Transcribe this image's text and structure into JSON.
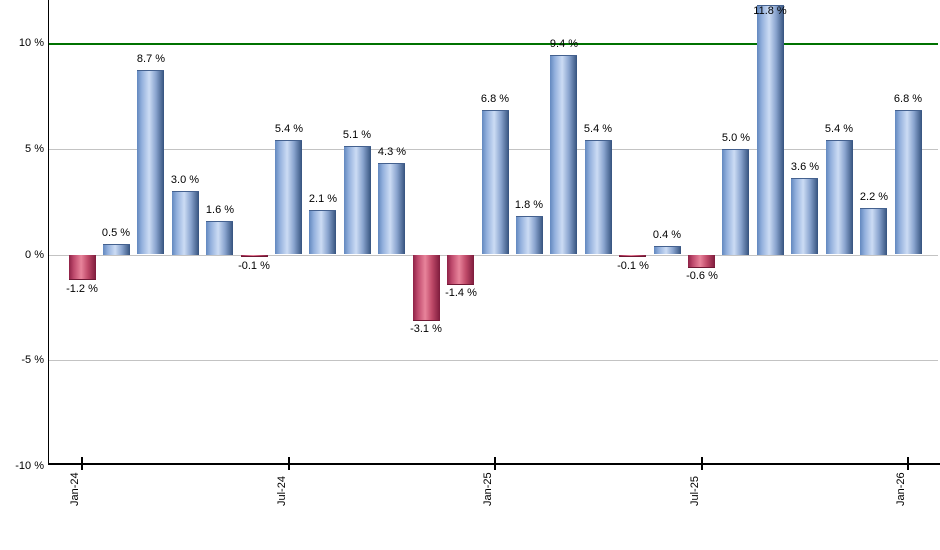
{
  "chart_data": {
    "type": "bar",
    "title": "",
    "xlabel": "",
    "ylabel": "",
    "x_tick_labels": [
      "Jan-24",
      "Jul-24",
      "Jan-25",
      "Jul-25",
      "Jan-26"
    ],
    "x_tick_month_indices": [
      0,
      6,
      12,
      18,
      24
    ],
    "y_tick_labels": [
      "10 %",
      "5 %",
      "0 %",
      "-5 %",
      "-10 %"
    ],
    "y_tick_values": [
      10,
      5,
      0,
      -5,
      -10
    ],
    "grid_values": [
      5,
      0,
      -5
    ],
    "ylim": [
      -10,
      12
    ],
    "legend": "none",
    "reference_line": {
      "value": 10,
      "color": "#007200"
    },
    "series": [
      {
        "name": "monthly-return-percent",
        "points": [
          {
            "month": "Jan-24",
            "value": -1.2,
            "label": "-1.2 %"
          },
          {
            "month": "Feb-24",
            "value": 0.5,
            "label": "0.5 %"
          },
          {
            "month": "Mar-24",
            "value": 8.7,
            "label": "8.7 %"
          },
          {
            "month": "Apr-24",
            "value": 3.0,
            "label": "3.0 %"
          },
          {
            "month": "May-24",
            "value": 1.6,
            "label": "1.6 %"
          },
          {
            "month": "Jun-24",
            "value": -0.1,
            "label": "-0.1 %"
          },
          {
            "month": "Jul-24",
            "value": 5.4,
            "label": "5.4 %"
          },
          {
            "month": "Aug-24",
            "value": 2.1,
            "label": "2.1 %"
          },
          {
            "month": "Sep-24",
            "value": 5.1,
            "label": "5.1 %"
          },
          {
            "month": "Oct-24",
            "value": 4.3,
            "label": "4.3 %"
          },
          {
            "month": "Nov-24",
            "value": -3.1,
            "label": "-3.1 %"
          },
          {
            "month": "Dec-24",
            "value": -1.4,
            "label": "-1.4 %"
          },
          {
            "month": "Jan-25",
            "value": 6.8,
            "label": "6.8 %"
          },
          {
            "month": "Feb-25",
            "value": 1.8,
            "label": "1.8 %"
          },
          {
            "month": "Mar-25",
            "value": 9.4,
            "label": "9.4 %"
          },
          {
            "month": "Apr-25",
            "value": 5.4,
            "label": "5.4 %"
          },
          {
            "month": "May-25",
            "value": -0.1,
            "label": "-0.1 %"
          },
          {
            "month": "Jun-25",
            "value": 0.4,
            "label": "0.4 %"
          },
          {
            "month": "Jul-25",
            "value": -0.6,
            "label": "-0.6 %"
          },
          {
            "month": "Aug-25",
            "value": 5.0,
            "label": "5.0 %"
          },
          {
            "month": "Sep-25",
            "value": 11.8,
            "label": "11.8 %"
          },
          {
            "month": "Oct-25",
            "value": 3.6,
            "label": "3.6 %"
          },
          {
            "month": "Nov-25",
            "value": 5.4,
            "label": "5.4 %"
          },
          {
            "month": "Dec-25",
            "value": 2.2,
            "label": "2.2 %"
          },
          {
            "month": "Jan-26",
            "value": 6.8,
            "label": "6.8 %"
          }
        ]
      }
    ],
    "colors": {
      "positive_bar_core": "#ccdcf4",
      "positive_bar_edge": "#35527e",
      "negative_bar_core": "#e8849b",
      "negative_bar_edge": "#7d1b3c",
      "gridline": "#c3c3c3",
      "axis": "#000000",
      "reference_line": "#007200",
      "label_text": "#000000",
      "background": "#ffffff"
    }
  }
}
